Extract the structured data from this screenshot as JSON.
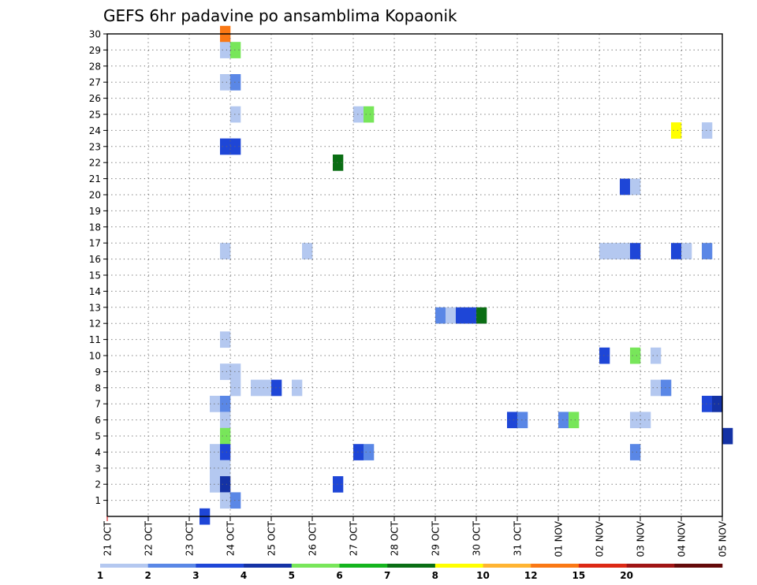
{
  "chart_data": {
    "type": "heatmap",
    "title": "GEFS 6hr padavine po ansamblima Kopaonik",
    "x_ticks": [
      "21 OCT",
      "22 OCT",
      "23 OCT",
      "24 OCT",
      "25 OCT",
      "26 OCT",
      "27 OCT",
      "28 OCT",
      "29 OCT",
      "30 OCT",
      "31 OCT",
      "01 NOV",
      "02 NOV",
      "03 NOV",
      "04 NOV",
      "05 NOV"
    ],
    "y_ticks": [
      "1",
      "2",
      "3",
      "4",
      "5",
      "6",
      "7",
      "8",
      "9",
      "10",
      "11",
      "12",
      "13",
      "14",
      "15",
      "16",
      "17",
      "18",
      "19",
      "20",
      "21",
      "22",
      "23",
      "24",
      "25",
      "26",
      "27",
      "28",
      "29",
      "30"
    ],
    "grid": true,
    "legend": {
      "placement": "bottom",
      "labels": [
        "1",
        "2",
        "3",
        "4",
        "5",
        "6",
        "7",
        "8",
        "10",
        "12",
        "15",
        "20"
      ],
      "colors": [
        "#b4c8f0",
        "#5a87e6",
        "#1e46d7",
        "#1432a5",
        "#78e65a",
        "#14b41e",
        "#0a6e14",
        "#ffff00",
        "#ffb432",
        "#fa7814",
        "#dc2814",
        "#a01414",
        "#640a0a"
      ]
    },
    "time_step_hours": 6,
    "cells": [
      {
        "member": 30,
        "x": "23 OCT 18Z",
        "level": 10
      },
      {
        "member": 29,
        "x": "23 OCT 18Z",
        "level": 1
      },
      {
        "member": 29,
        "x": "24 OCT 00Z",
        "level": 5
      },
      {
        "member": 27,
        "x": "23 OCT 18Z",
        "level": 1
      },
      {
        "member": 27,
        "x": "24 OCT 00Z",
        "level": 2
      },
      {
        "member": 25,
        "x": "24 OCT 00Z",
        "level": 1
      },
      {
        "member": 25,
        "x": "27 OCT 00Z",
        "level": 1
      },
      {
        "member": 25,
        "x": "27 OCT 06Z",
        "level": 5
      },
      {
        "member": 24,
        "x": "03 NOV 18Z",
        "level": 8
      },
      {
        "member": 24,
        "x": "04 NOV 12Z",
        "level": 1
      },
      {
        "member": 23,
        "x": "23 OCT 18Z",
        "level": 3
      },
      {
        "member": 23,
        "x": "24 OCT 00Z",
        "level": 3
      },
      {
        "member": 22,
        "x": "26 OCT 12Z",
        "level": 7
      },
      {
        "member": 20.5,
        "x": "02 NOV 12Z",
        "level": 3
      },
      {
        "member": 20.5,
        "x": "02 NOV 18Z",
        "level": 1
      },
      {
        "member": 16.5,
        "x": "23 OCT 18Z",
        "level": 1
      },
      {
        "member": 16.5,
        "x": "25 OCT 18Z",
        "level": 1
      },
      {
        "member": 16.5,
        "x": "02 NOV 00Z",
        "level": 1
      },
      {
        "member": 16.5,
        "x": "02 NOV 06Z",
        "level": 1
      },
      {
        "member": 16.5,
        "x": "02 NOV 12Z",
        "level": 1
      },
      {
        "member": 16.5,
        "x": "02 NOV 18Z",
        "level": 3
      },
      {
        "member": 16.5,
        "x": "03 NOV 18Z",
        "level": 3
      },
      {
        "member": 16.5,
        "x": "04 NOV 00Z",
        "level": 1
      },
      {
        "member": 16.5,
        "x": "04 NOV 12Z",
        "level": 2
      },
      {
        "member": 12.5,
        "x": "29 OCT 00Z",
        "level": 2
      },
      {
        "member": 12.5,
        "x": "29 OCT 06Z",
        "level": 1
      },
      {
        "member": 12.5,
        "x": "29 OCT 12Z",
        "level": 3
      },
      {
        "member": 12.5,
        "x": "29 OCT 18Z",
        "level": 3
      },
      {
        "member": 12.5,
        "x": "30 OCT 00Z",
        "level": 7
      },
      {
        "member": 11,
        "x": "23 OCT 18Z",
        "level": 1
      },
      {
        "member": 10,
        "x": "02 NOV 00Z",
        "level": 3
      },
      {
        "member": 10,
        "x": "02 NOV 18Z",
        "level": 5
      },
      {
        "member": 10,
        "x": "03 NOV 06Z",
        "level": 1
      },
      {
        "member": 9,
        "x": "23 OCT 18Z",
        "level": 1
      },
      {
        "member": 9,
        "x": "24 OCT 00Z",
        "level": 1
      },
      {
        "member": 8,
        "x": "24 OCT 00Z",
        "level": 1
      },
      {
        "member": 8,
        "x": "24 OCT 12Z",
        "level": 1
      },
      {
        "member": 8,
        "x": "24 OCT 18Z",
        "level": 1
      },
      {
        "member": 8,
        "x": "25 OCT 00Z",
        "level": 3
      },
      {
        "member": 8,
        "x": "25 OCT 12Z",
        "level": 1
      },
      {
        "member": 8,
        "x": "03 NOV 06Z",
        "level": 1
      },
      {
        "member": 8,
        "x": "03 NOV 12Z",
        "level": 2
      },
      {
        "member": 7,
        "x": "23 OCT 12Z",
        "level": 1
      },
      {
        "member": 7,
        "x": "23 OCT 18Z",
        "level": 2
      },
      {
        "member": 7,
        "x": "04 NOV 12Z",
        "level": 3
      },
      {
        "member": 7,
        "x": "04 NOV 18Z",
        "level": 4
      },
      {
        "member": 6,
        "x": "23 OCT 18Z",
        "level": 1
      },
      {
        "member": 6,
        "x": "30 OCT 18Z",
        "level": 3
      },
      {
        "member": 6,
        "x": "31 OCT 00Z",
        "level": 2
      },
      {
        "member": 6,
        "x": "01 NOV 00Z",
        "level": 2
      },
      {
        "member": 6,
        "x": "01 NOV 06Z",
        "level": 5
      },
      {
        "member": 6,
        "x": "02 NOV 18Z",
        "level": 1
      },
      {
        "member": 6,
        "x": "03 NOV 00Z",
        "level": 1
      },
      {
        "member": 5,
        "x": "23 OCT 18Z",
        "level": 5
      },
      {
        "member": 5,
        "x": "05 NOV 00Z",
        "level": 4
      },
      {
        "member": 4,
        "x": "23 OCT 12Z",
        "level": 1
      },
      {
        "member": 4,
        "x": "23 OCT 18Z",
        "level": 3
      },
      {
        "member": 4,
        "x": "27 OCT 00Z",
        "level": 3
      },
      {
        "member": 4,
        "x": "27 OCT 06Z",
        "level": 2
      },
      {
        "member": 4,
        "x": "02 NOV 18Z",
        "level": 2
      },
      {
        "member": 3,
        "x": "23 OCT 12Z",
        "level": 1
      },
      {
        "member": 3,
        "x": "23 OCT 18Z",
        "level": 1
      },
      {
        "member": 2,
        "x": "23 OCT 12Z",
        "level": 1
      },
      {
        "member": 2,
        "x": "23 OCT 18Z",
        "level": 4
      },
      {
        "member": 2,
        "x": "26 OCT 12Z",
        "level": 3
      },
      {
        "member": 1,
        "x": "23 OCT 18Z",
        "level": 1
      },
      {
        "member": 1,
        "x": "24 OCT 00Z",
        "level": 2
      },
      {
        "member": 0,
        "x": "23 OCT 06Z",
        "level": 3
      }
    ]
  }
}
